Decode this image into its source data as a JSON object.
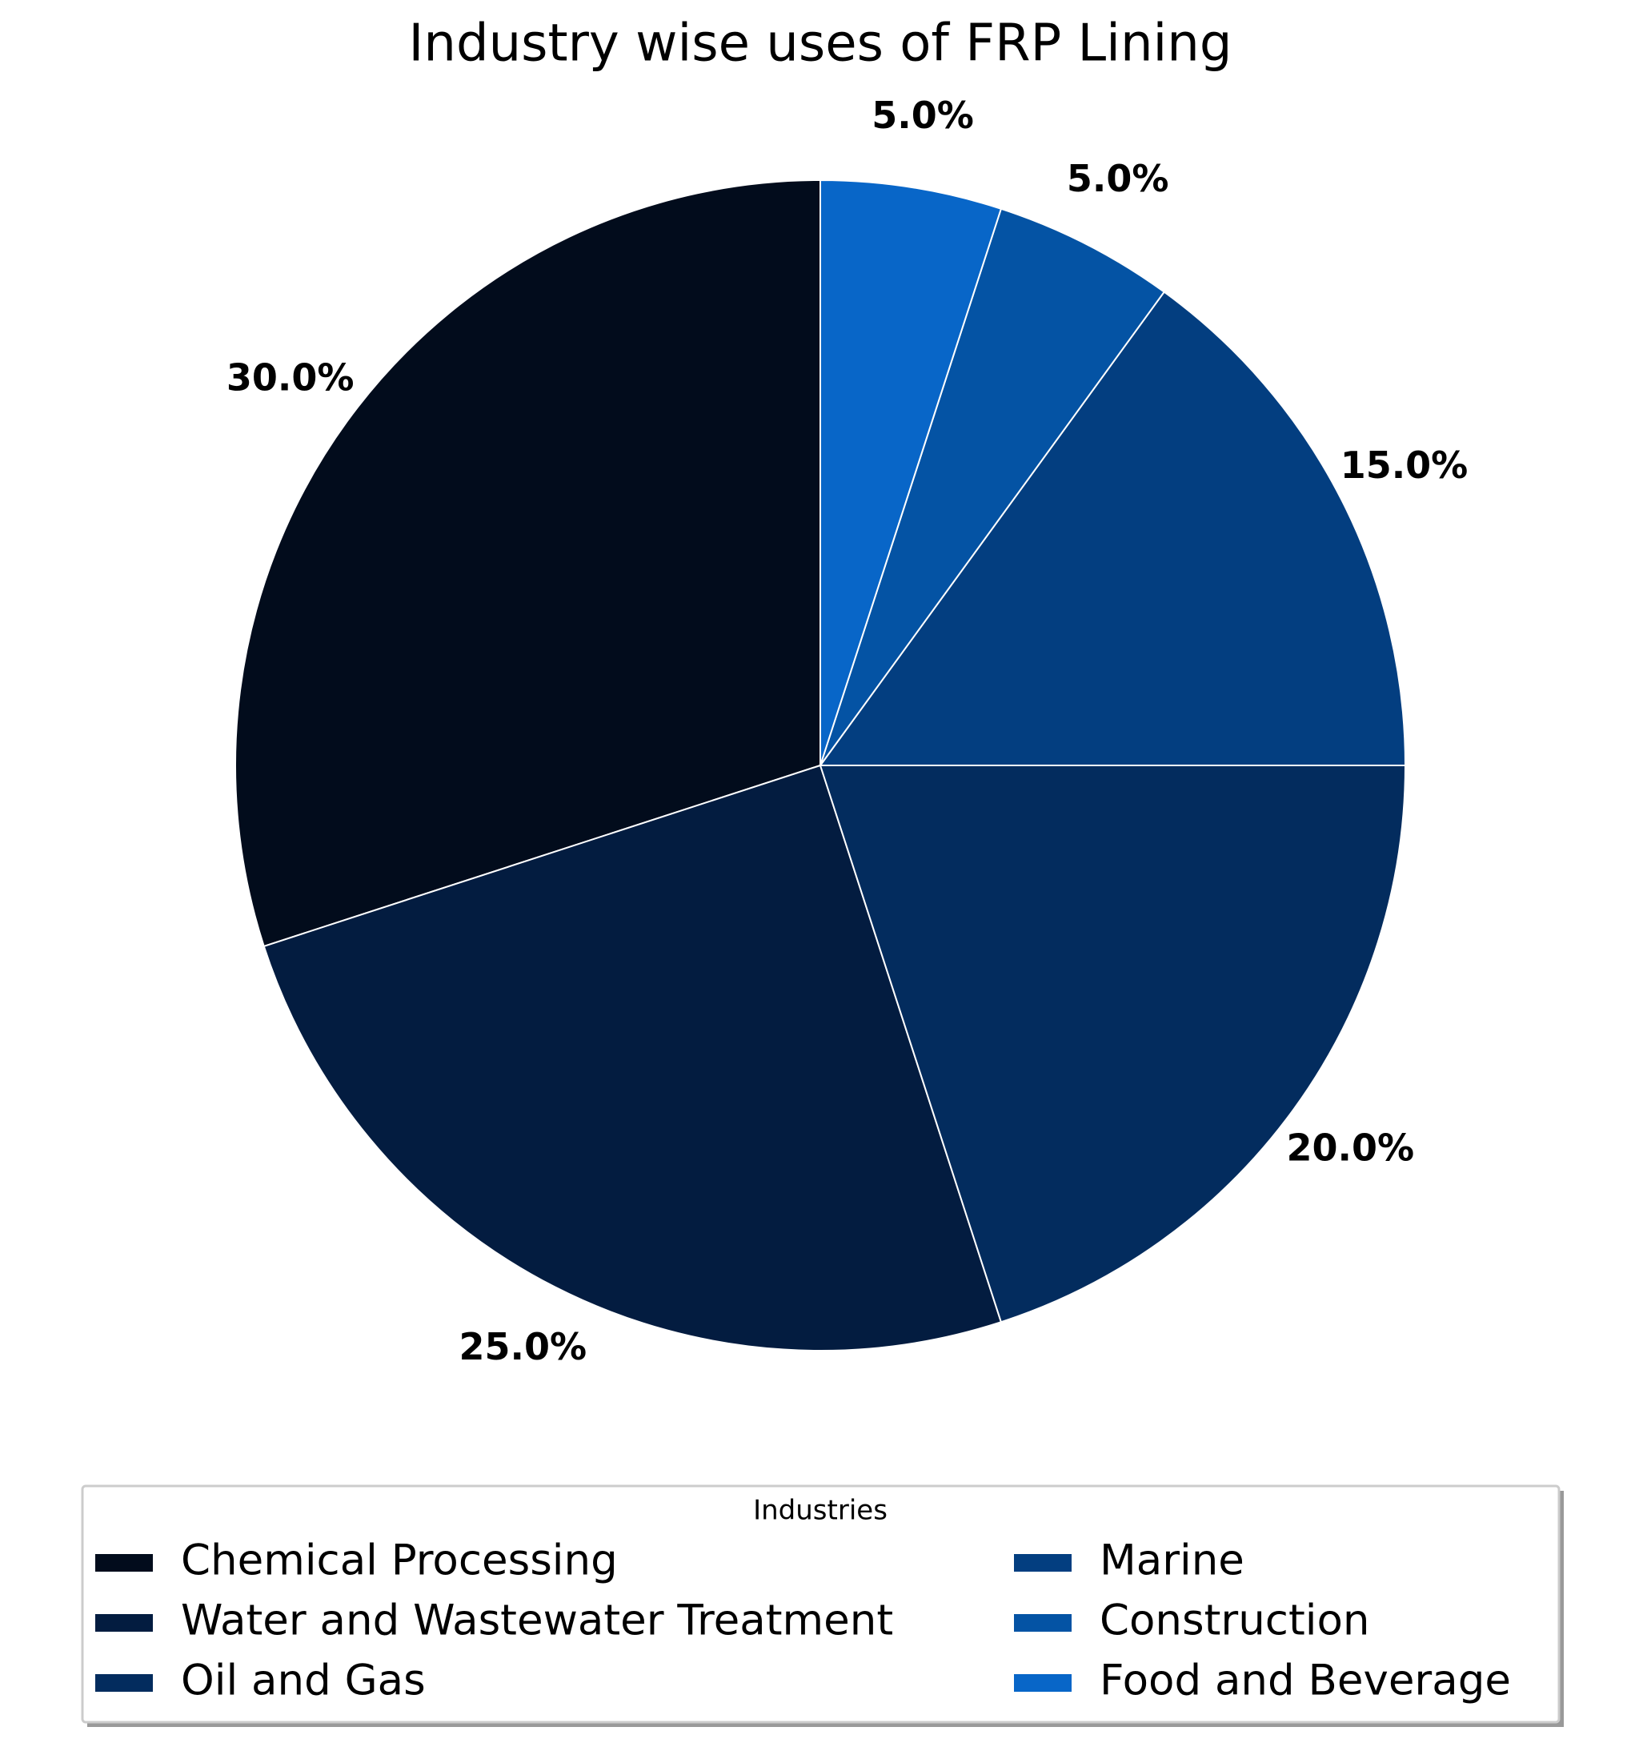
{
  "chart_data": {
    "type": "pie",
    "title": "Industry wise uses of FRP Lining",
    "legend_title": "Industries",
    "categories": [
      "Chemical Processing",
      "Water and Wastewater Treatment",
      "Oil and Gas",
      "Marine",
      "Construction",
      "Food and Beverage"
    ],
    "values": [
      30,
      25,
      20,
      15,
      5,
      5
    ],
    "value_labels": [
      "30.0%",
      "25.0%",
      "20.0%",
      "15.0%",
      "5.0%",
      "5.0%"
    ],
    "colors": [
      "#020c1c",
      "#031c40",
      "#032c5e",
      "#033e80",
      "#0453a4",
      "#0866c8"
    ]
  }
}
